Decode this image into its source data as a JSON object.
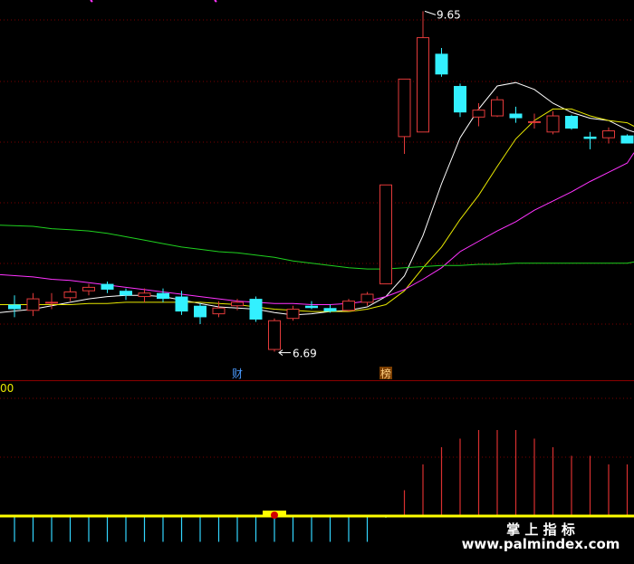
{
  "colors": {
    "background": "#000000",
    "grid": "#7a0000",
    "up": "#e23a3a",
    "down": "#33f0ff",
    "ma_white": "#ffffff",
    "ma_yellow": "#e8e800",
    "ma_magenta": "#ff33ff",
    "ma_green": "#1fd11f",
    "ind_up": "#d83030",
    "ind_down": "#33d6ff",
    "ind_zero": "#ffff00",
    "event_text_blue": "#4a9bff",
    "event_text_orange": "#e08a20"
  },
  "price_panel": {
    "high_label": "9.65",
    "low_label": "6.69",
    "events": [
      {
        "label": "财",
        "candle": 12,
        "color": "blue"
      },
      {
        "label": "榜",
        "candle": 20,
        "color": "orange"
      }
    ]
  },
  "indicator_panel": {
    "axis_label": "00"
  },
  "watermark": {
    "title": "掌 上 指 标",
    "url": "www.palmindex.com"
  },
  "chart_data": [
    {
      "type": "candlestick",
      "title": "",
      "y_scale": [
        6.6,
        9.7
      ],
      "candles": [
        {
          "o": 7.1,
          "c": 7.06,
          "h": 7.18,
          "l": 6.99
        },
        {
          "o": 7.05,
          "c": 7.15,
          "h": 7.2,
          "l": 7.0
        },
        {
          "o": 7.12,
          "c": 7.12,
          "h": 7.2,
          "l": 7.06
        },
        {
          "o": 7.16,
          "c": 7.21,
          "h": 7.25,
          "l": 7.13
        },
        {
          "o": 7.22,
          "c": 7.25,
          "h": 7.28,
          "l": 7.18
        },
        {
          "o": 7.28,
          "c": 7.23,
          "h": 7.3,
          "l": 7.2
        },
        {
          "o": 7.22,
          "c": 7.18,
          "h": 7.24,
          "l": 7.14
        },
        {
          "o": 7.17,
          "c": 7.2,
          "h": 7.24,
          "l": 7.12
        },
        {
          "o": 7.2,
          "c": 7.15,
          "h": 7.24,
          "l": 7.12
        },
        {
          "o": 7.17,
          "c": 7.04,
          "h": 7.22,
          "l": 7.01
        },
        {
          "o": 7.09,
          "c": 6.99,
          "h": 7.11,
          "l": 6.93
        },
        {
          "o": 7.02,
          "c": 7.07,
          "h": 7.13,
          "l": 6.99
        },
        {
          "o": 7.09,
          "c": 7.12,
          "h": 7.15,
          "l": 7.05
        },
        {
          "o": 7.15,
          "c": 6.97,
          "h": 7.17,
          "l": 6.95
        },
        {
          "o": 6.71,
          "c": 6.96,
          "h": 6.98,
          "l": 6.69
        },
        {
          "o": 6.98,
          "c": 7.06,
          "h": 7.09,
          "l": 6.96
        },
        {
          "o": 7.09,
          "c": 7.07,
          "h": 7.13,
          "l": 7.06
        },
        {
          "o": 7.07,
          "c": 7.04,
          "h": 7.1,
          "l": 7.03
        },
        {
          "o": 7.05,
          "c": 7.13,
          "h": 7.15,
          "l": 7.04
        },
        {
          "o": 7.12,
          "c": 7.19,
          "h": 7.21,
          "l": 7.09
        },
        {
          "o": 7.28,
          "c": 8.14,
          "h": 8.14,
          "l": 7.28
        },
        {
          "o": 8.56,
          "c": 9.06,
          "h": 9.06,
          "l": 8.41
        },
        {
          "o": 8.6,
          "c": 9.42,
          "h": 9.65,
          "l": 8.6
        },
        {
          "o": 9.28,
          "c": 9.1,
          "h": 9.33,
          "l": 9.08
        },
        {
          "o": 9.0,
          "c": 8.77,
          "h": 9.02,
          "l": 8.73
        },
        {
          "o": 8.73,
          "c": 8.79,
          "h": 8.85,
          "l": 8.65
        },
        {
          "o": 8.74,
          "c": 8.88,
          "h": 8.91,
          "l": 8.73
        },
        {
          "o": 8.76,
          "c": 8.72,
          "h": 8.82,
          "l": 8.68
        },
        {
          "o": 8.69,
          "c": 8.69,
          "h": 8.76,
          "l": 8.63
        },
        {
          "o": 8.6,
          "c": 8.74,
          "h": 8.78,
          "l": 8.58
        },
        {
          "o": 8.74,
          "c": 8.63,
          "h": 8.75,
          "l": 8.62
        },
        {
          "o": 8.56,
          "c": 8.54,
          "h": 8.6,
          "l": 8.45
        },
        {
          "o": 8.55,
          "c": 8.61,
          "h": 8.64,
          "l": 8.5
        },
        {
          "o": 8.57,
          "c": 8.5,
          "h": 8.58,
          "l": 8.5
        },
        {
          "o": 8.57,
          "c": 8.57,
          "h": 8.6,
          "l": 8.52
        }
      ],
      "moving_averages": [
        {
          "color_key": "ma_white",
          "values": [
            7.03,
            7.06,
            7.09,
            7.12,
            7.15,
            7.17,
            7.18,
            7.18,
            7.17,
            7.14,
            7.11,
            7.08,
            7.07,
            7.06,
            7.03,
            7.01,
            7.02,
            7.04,
            7.05,
            7.08,
            7.17,
            7.35,
            7.7,
            8.15,
            8.55,
            8.8,
            9.0,
            9.03,
            8.97,
            8.85,
            8.77,
            8.72,
            8.7,
            8.62,
            8.6
          ]
        },
        {
          "color_key": "ma_yellow",
          "values": [
            7.1,
            7.1,
            7.1,
            7.1,
            7.11,
            7.11,
            7.12,
            7.12,
            7.12,
            7.12,
            7.12,
            7.11,
            7.1,
            7.08,
            7.06,
            7.05,
            7.04,
            7.04,
            7.04,
            7.06,
            7.1,
            7.22,
            7.42,
            7.6,
            7.84,
            8.05,
            8.3,
            8.54,
            8.7,
            8.8,
            8.8,
            8.74,
            8.7,
            8.68,
            8.65
          ]
        },
        {
          "color_key": "ma_magenta",
          "values": [
            7.36,
            7.34,
            7.32,
            7.31,
            7.29,
            7.27,
            7.25,
            7.23,
            7.21,
            7.19,
            7.17,
            7.15,
            7.13,
            7.12,
            7.11,
            7.11,
            7.1,
            7.1,
            7.11,
            7.13,
            7.17,
            7.23,
            7.32,
            7.42,
            7.56,
            7.65,
            7.74,
            7.82,
            7.92,
            8.0,
            8.08,
            8.17,
            8.25,
            8.33,
            8.42
          ]
        },
        {
          "color_key": "ma_green",
          "values": [
            7.79,
            7.78,
            7.76,
            7.75,
            7.74,
            7.72,
            7.69,
            7.66,
            7.63,
            7.6,
            7.58,
            7.56,
            7.55,
            7.53,
            7.51,
            7.48,
            7.46,
            7.44,
            7.42,
            7.41,
            7.41,
            7.42,
            7.43,
            7.44,
            7.44,
            7.45,
            7.45,
            7.46,
            7.46,
            7.46,
            7.46,
            7.46,
            7.46,
            7.46,
            7.47
          ]
        }
      ]
    },
    {
      "type": "bar",
      "title": "",
      "zero_line": true,
      "ylim": [
        -3,
        10
      ],
      "values": [
        -3,
        -3,
        -3,
        -3,
        -3,
        -3,
        -3,
        -3,
        -3,
        -3,
        -3,
        -3,
        -3,
        -3,
        -3,
        -3,
        -3,
        -3,
        -3,
        -3,
        -0.2,
        3,
        6,
        8,
        9,
        10,
        10,
        10,
        9,
        8,
        7,
        7,
        6,
        6,
        4
      ]
    }
  ]
}
